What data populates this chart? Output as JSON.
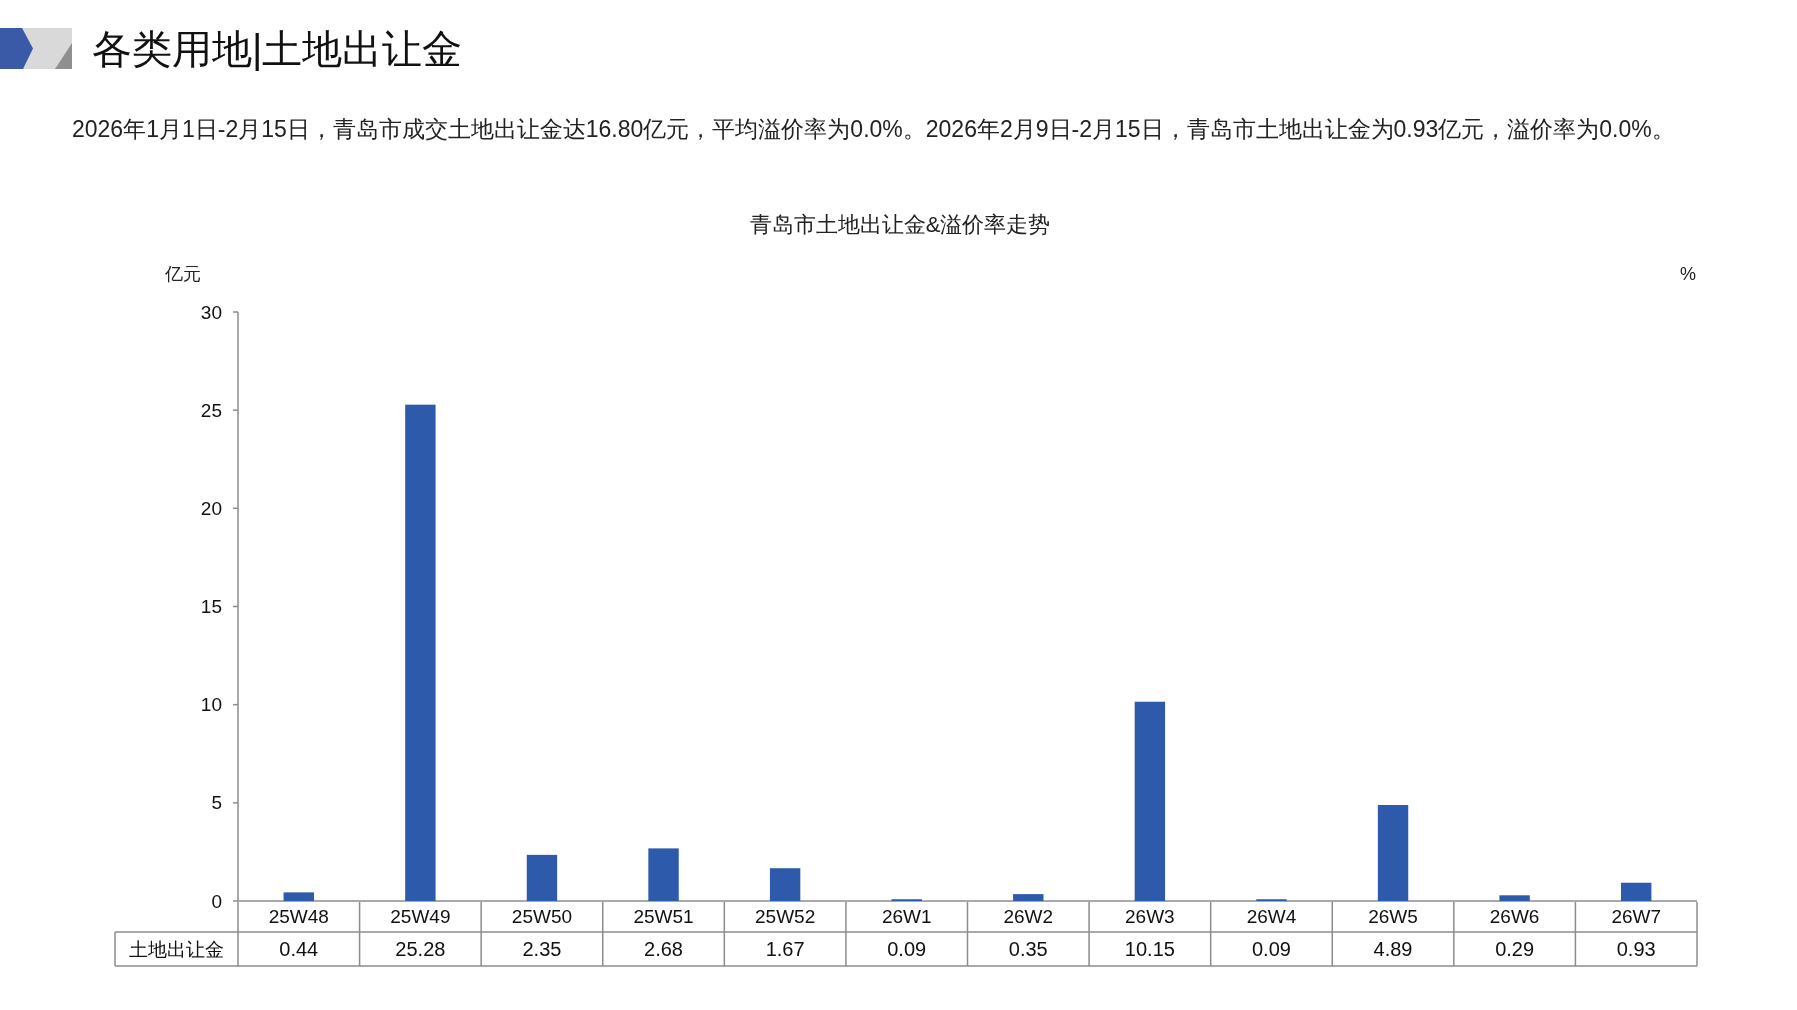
{
  "chart_data": {
    "type": "bar",
    "title": "青岛市土地出让金&溢价率走势",
    "ylabel": "亿元",
    "y2label": "%",
    "annotations": [
      "各类用地|土地出让金",
      "2026年1月1日-2月15日，青岛市成交土地出让金达16.80亿元，平均溢价率为0.0%。2026年2月9日-2月15日，青岛市土地出让金为0.93亿元，溢价率为0.0%。"
    ],
    "categories": [
      "25W48",
      "25W49",
      "25W50",
      "25W51",
      "25W52",
      "26W1",
      "26W2",
      "26W3",
      "26W4",
      "26W5",
      "26W6",
      "26W7"
    ],
    "series": [
      {
        "name": "土地出让金",
        "color": "#2e5aac",
        "values": [
          0.44,
          25.28,
          2.35,
          2.68,
          1.67,
          0.09,
          0.35,
          10.15,
          0.09,
          4.89,
          0.29,
          0.93
        ]
      }
    ],
    "ylim": [
      0,
      30
    ],
    "yticks": [
      0,
      5,
      10,
      15,
      20,
      25,
      30
    ],
    "data_labels": true
  }
}
